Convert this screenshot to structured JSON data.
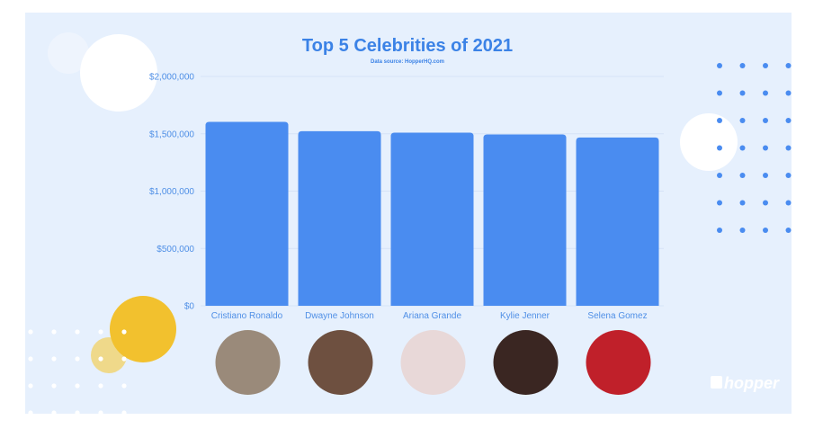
{
  "chart_data": {
    "type": "bar",
    "title": "Top 5 Celebrities of 2021",
    "subtitle": "Data source: HopperHQ.com",
    "categories": [
      "Cristiano Ronaldo",
      "Dwayne Johnson",
      "Ariana Grande",
      "Kylie Jenner",
      "Selena Gomez"
    ],
    "values": [
      1604000,
      1523000,
      1510000,
      1494000,
      1468000
    ],
    "ylim": [
      0,
      2000000
    ],
    "yticks": [
      0,
      500000,
      1000000,
      1500000,
      2000000
    ],
    "ytick_labels": [
      "$0",
      "$500,000",
      "$1,000,000",
      "$1,500,000",
      "$2,000,000"
    ],
    "xlabel": "",
    "ylabel": "",
    "grid": true,
    "bar_color": "#4a8cf0"
  },
  "avatars": [
    "cristiano-ronaldo-photo",
    "dwayne-johnson-photo",
    "ariana-grande-photo",
    "kylie-jenner-photo",
    "selena-gomez-photo"
  ],
  "avatar_colors": [
    "#9a8a7a",
    "#6e5040",
    "#e8d8d8",
    "#3a2622",
    "#c0202a"
  ],
  "logo": {
    "text": "hopper"
  },
  "colors": {
    "background": "#e6f0fd",
    "accent": "#3b82e6",
    "dots": "#4a8cf0",
    "yellow": "#f2c12e"
  }
}
